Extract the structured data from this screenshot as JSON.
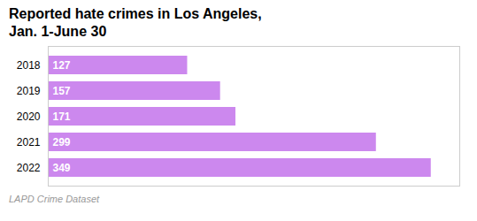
{
  "chart_data": {
    "type": "bar",
    "title": "Reported hate crimes in Los Angeles,",
    "subtitle": "Jan. 1-June 30",
    "caption": "LAPD Crime Dataset",
    "categories": [
      "2018",
      "2019",
      "2020",
      "2021",
      "2022"
    ],
    "values": [
      127,
      157,
      171,
      299,
      349
    ],
    "color": "#cc88ee",
    "orientation": "horizontal",
    "xlim": [
      0,
      375
    ],
    "xticks": [],
    "data_labels": true,
    "tick_labels": "y",
    "grid": false
  }
}
